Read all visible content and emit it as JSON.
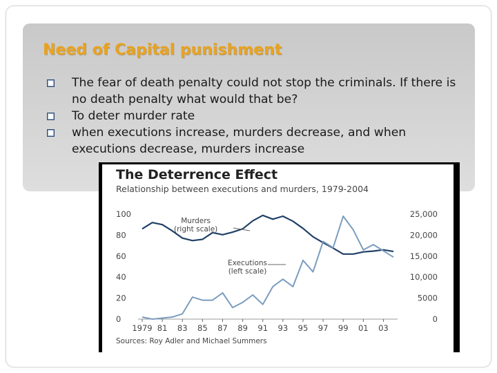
{
  "slide": {
    "title": "Need of Capital punishment",
    "bullets": [
      "The fear of death penalty could not stop the criminals. If there is no death penalty what would that be?",
      "To deter murder rate",
      "when executions increase, murders decrease, and when executions decrease, murders increase"
    ],
    "bullet_icon": "hollow-square-bullet-icon"
  },
  "colors": {
    "title": "#e8a320",
    "panel": "#d0d0d0",
    "text": "#1a1a1a",
    "murders_line": "#1f3f66",
    "executions_line": "#7a9cc0"
  },
  "chart_data": {
    "type": "line",
    "title": "The Deterrence Effect",
    "subtitle": "Relationship between executions and murders, 1979-2004",
    "source": "Sources: Roy Adler and Michael Summers",
    "x": [
      1979,
      1980,
      1981,
      1982,
      1983,
      1984,
      1985,
      1986,
      1987,
      1988,
      1989,
      1990,
      1991,
      1992,
      1993,
      1994,
      1995,
      1996,
      1997,
      1998,
      1999,
      2000,
      2001,
      2002,
      2003,
      2004
    ],
    "xticks": [
      "1979",
      "81",
      "83",
      "85",
      "87",
      "89",
      "91",
      "93",
      "95",
      "97",
      "99",
      "01",
      "03"
    ],
    "xlim": [
      1979,
      2004
    ],
    "left_axis": {
      "ticks": [
        "100",
        "80",
        "60",
        "40",
        "20",
        "0"
      ],
      "ylim": [
        0,
        100
      ]
    },
    "right_axis": {
      "ticks": [
        "25,000",
        "20,000",
        "15,000",
        "10,000",
        "5000",
        "0"
      ],
      "ylim": [
        0,
        25000
      ]
    },
    "series": [
      {
        "name": "Murders",
        "axis_note": "(right scale)",
        "axis": "right",
        "values": [
          21500,
          23000,
          22500,
          21000,
          19300,
          18700,
          19000,
          20600,
          20100,
          20700,
          21500,
          23400,
          24700,
          23800,
          24500,
          23300,
          21600,
          19600,
          18200,
          16900,
          15500,
          15500,
          16000,
          16200,
          16500,
          16100
        ]
      },
      {
        "name": "Executions",
        "axis_note": "(left scale)",
        "axis": "left",
        "values": [
          2,
          0,
          1,
          2,
          5,
          21,
          18,
          18,
          25,
          11,
          16,
          23,
          14,
          31,
          38,
          31,
          56,
          45,
          74,
          68,
          98,
          85,
          66,
          71,
          65,
          59
        ]
      }
    ],
    "grid": false,
    "legend": "inline labels"
  }
}
